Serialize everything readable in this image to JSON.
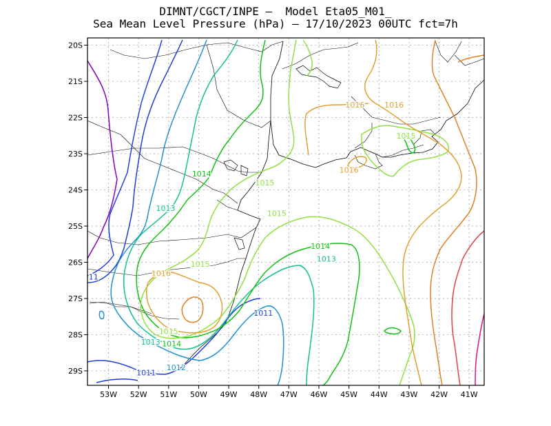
{
  "title": {
    "line1": "DIMNT/CGCT/INPE –  Model Eta05_M01_",
    "line2": "Sea Mean Level Pressure (hPa) – 17/10/2023 00UTC fct=7h"
  },
  "map": {
    "projection": "lat-lon",
    "lon_range": [
      -53.7,
      -40.5
    ],
    "lat_range": [
      -29.4,
      -19.8
    ],
    "grid": true,
    "lon_ticks": [
      {
        "value": -53,
        "label": "53W"
      },
      {
        "value": -52,
        "label": "52W"
      },
      {
        "value": -51,
        "label": "51W"
      },
      {
        "value": -50,
        "label": "50W"
      },
      {
        "value": -49,
        "label": "49W"
      },
      {
        "value": -48,
        "label": "48W"
      },
      {
        "value": -47,
        "label": "47W"
      },
      {
        "value": -46,
        "label": "46W"
      },
      {
        "value": -45,
        "label": "45W"
      },
      {
        "value": -44,
        "label": "44W"
      },
      {
        "value": -43,
        "label": "43W"
      },
      {
        "value": -42,
        "label": "42W"
      },
      {
        "value": -41,
        "label": "41W"
      }
    ],
    "lat_ticks": [
      {
        "value": -20,
        "label": "20S"
      },
      {
        "value": -21,
        "label": "21S"
      },
      {
        "value": -22,
        "label": "22S"
      },
      {
        "value": -23,
        "label": "23S"
      },
      {
        "value": -24,
        "label": "24S"
      },
      {
        "value": -25,
        "label": "25S"
      },
      {
        "value": -26,
        "label": "26S"
      },
      {
        "value": -27,
        "label": "27S"
      },
      {
        "value": -28,
        "label": "28S"
      },
      {
        "value": -29,
        "label": "29S"
      }
    ]
  },
  "contour_colors": {
    "1009": "#8000c0",
    "1010": "#2040e0",
    "1011": "#1a3cd8",
    "1012": "#1e90d0",
    "1013": "#10c090",
    "1014": "#10c010",
    "1015": "#90e040",
    "1016": "#e0a030",
    "1017": "#e08020",
    "1018": "#e04040",
    "1019": "#e0107a"
  },
  "contour_labels": [
    {
      "text": "1016",
      "level": "1016",
      "lon": -44.8,
      "lat": -21.65
    },
    {
      "text": "1016",
      "level": "1016",
      "lon": -43.5,
      "lat": -21.65
    },
    {
      "text": "1015",
      "level": "1015",
      "lon": -43.1,
      "lat": -22.5
    },
    {
      "text": "1016",
      "level": "1016",
      "lon": -45.0,
      "lat": -23.45
    },
    {
      "text": "1014",
      "level": "1014",
      "lon": -49.9,
      "lat": -23.55
    },
    {
      "text": "1015",
      "level": "1015",
      "lon": -47.8,
      "lat": -23.8
    },
    {
      "text": "1013",
      "level": "1013",
      "lon": -51.1,
      "lat": -24.5
    },
    {
      "text": "1015",
      "level": "1015",
      "lon": -47.4,
      "lat": -24.65
    },
    {
      "text": "1014",
      "level": "1014",
      "lon": -45.95,
      "lat": -25.55
    },
    {
      "text": "1013",
      "level": "1013",
      "lon": -45.75,
      "lat": -25.9
    },
    {
      "text": "1015",
      "level": "1015",
      "lon": -49.95,
      "lat": -26.05
    },
    {
      "text": "1016",
      "level": "1016",
      "lon": -51.25,
      "lat": -26.3
    },
    {
      "text": "11",
      "level": "1011",
      "lon": -53.5,
      "lat": -26.4
    },
    {
      "text": "1011",
      "level": "1011",
      "lon": -47.85,
      "lat": -27.4
    },
    {
      "text": "1015",
      "level": "1015",
      "lon": -51.0,
      "lat": -27.9
    },
    {
      "text": "1013",
      "level": "1013",
      "lon": -51.6,
      "lat": -28.2
    },
    {
      "text": "1014",
      "level": "1014",
      "lon": -50.9,
      "lat": -28.25
    },
    {
      "text": "1012",
      "level": "1012",
      "lon": -50.75,
      "lat": -28.9
    },
    {
      "text": "1011",
      "level": "1011",
      "lon": -51.75,
      "lat": -29.05
    }
  ]
}
